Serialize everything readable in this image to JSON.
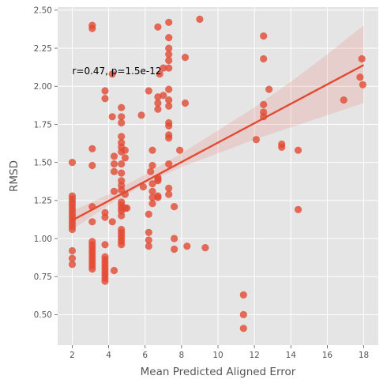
{
  "chart_data": {
    "type": "scatter",
    "title": "",
    "xlabel": "Mean Predicted Aligned Error",
    "ylabel": "RMSD",
    "xlim": [
      1.2,
      18.8
    ],
    "ylim": [
      0.3,
      2.52
    ],
    "xticks": [
      2,
      4,
      6,
      8,
      10,
      12,
      14,
      16,
      18
    ],
    "yticks": [
      0.5,
      0.75,
      1.0,
      1.25,
      1.5,
      1.75,
      2.0,
      2.25,
      2.5
    ],
    "grid": true,
    "style": "ggplot",
    "colors": {
      "background": "#E5E5E5",
      "grid": "#FFFFFF",
      "points": "#E24A33",
      "regression": "#E24A33",
      "confidence_band": "#E24A33"
    },
    "annotation": {
      "text": "r=0.47, p=1.5e-12",
      "x": 2.0,
      "y": 2.1
    },
    "regression": {
      "x": [
        2.0,
        18.0
      ],
      "y": [
        1.12,
        2.14
      ],
      "ci_lower": [
        [
          2.0,
          1.06
        ],
        [
          4.0,
          1.22
        ],
        [
          6.0,
          1.36
        ],
        [
          8.0,
          1.47
        ],
        [
          10.0,
          1.56
        ],
        [
          12.0,
          1.65
        ],
        [
          14.0,
          1.73
        ],
        [
          16.0,
          1.81
        ],
        [
          18.0,
          1.89
        ]
      ],
      "ci_upper": [
        [
          2.0,
          1.18
        ],
        [
          4.0,
          1.29
        ],
        [
          6.0,
          1.42
        ],
        [
          8.0,
          1.56
        ],
        [
          10.0,
          1.71
        ],
        [
          12.0,
          1.86
        ],
        [
          14.0,
          2.03
        ],
        [
          16.0,
          2.21
        ],
        [
          18.0,
          2.4
        ]
      ]
    },
    "points": [
      [
        2.0,
        1.28
      ],
      [
        2.0,
        1.26
      ],
      [
        2.0,
        1.24
      ],
      [
        2.0,
        1.22
      ],
      [
        2.0,
        1.2
      ],
      [
        2.0,
        1.18
      ],
      [
        2.0,
        1.16
      ],
      [
        2.0,
        1.14
      ],
      [
        2.0,
        1.12
      ],
      [
        2.0,
        1.1
      ],
      [
        2.0,
        1.08
      ],
      [
        2.0,
        1.06
      ],
      [
        2.0,
        1.5
      ],
      [
        2.0,
        0.92
      ],
      [
        2.0,
        0.87
      ],
      [
        2.0,
        0.83
      ],
      [
        3.1,
        2.4
      ],
      [
        3.1,
        2.38
      ],
      [
        3.1,
        1.59
      ],
      [
        3.1,
        1.48
      ],
      [
        3.1,
        1.21
      ],
      [
        3.1,
        1.11
      ],
      [
        3.1,
        0.98
      ],
      [
        3.1,
        0.96
      ],
      [
        3.1,
        0.94
      ],
      [
        3.1,
        0.92
      ],
      [
        3.1,
        0.9
      ],
      [
        3.1,
        0.88
      ],
      [
        3.1,
        0.86
      ],
      [
        3.1,
        0.84
      ],
      [
        3.1,
        0.82
      ],
      [
        3.1,
        0.8
      ],
      [
        3.8,
        1.97
      ],
      [
        3.8,
        1.92
      ],
      [
        3.8,
        1.17
      ],
      [
        3.8,
        1.14
      ],
      [
        3.8,
        0.96
      ],
      [
        3.8,
        0.88
      ],
      [
        3.8,
        0.86
      ],
      [
        3.8,
        0.84
      ],
      [
        3.8,
        0.82
      ],
      [
        3.8,
        0.8
      ],
      [
        3.8,
        0.78
      ],
      [
        3.8,
        0.76
      ],
      [
        3.8,
        0.74
      ],
      [
        3.8,
        0.72
      ],
      [
        4.2,
        2.08
      ],
      [
        4.2,
        1.8
      ],
      [
        4.3,
        1.54
      ],
      [
        4.3,
        1.49
      ],
      [
        4.3,
        1.44
      ],
      [
        4.3,
        1.31
      ],
      [
        4.2,
        1.11
      ],
      [
        4.3,
        0.79
      ],
      [
        4.7,
        1.86
      ],
      [
        4.7,
        1.8
      ],
      [
        4.7,
        1.76
      ],
      [
        4.7,
        1.67
      ],
      [
        4.7,
        1.63
      ],
      [
        4.7,
        1.6
      ],
      [
        4.7,
        1.57
      ],
      [
        4.7,
        1.49
      ],
      [
        4.7,
        1.43
      ],
      [
        4.7,
        1.38
      ],
      [
        4.7,
        1.35
      ],
      [
        4.7,
        1.32
      ],
      [
        4.7,
        1.24
      ],
      [
        4.7,
        1.22
      ],
      [
        4.7,
        1.2
      ],
      [
        4.7,
        1.18
      ],
      [
        4.7,
        1.15
      ],
      [
        4.7,
        1.06
      ],
      [
        4.7,
        1.04
      ],
      [
        4.7,
        1.02
      ],
      [
        4.7,
        1.0
      ],
      [
        4.7,
        0.98
      ],
      [
        4.7,
        0.96
      ],
      [
        4.9,
        1.58
      ],
      [
        4.9,
        1.53
      ],
      [
        4.9,
        1.29
      ],
      [
        4.9,
        1.2
      ],
      [
        5.0,
        1.2
      ],
      [
        5.8,
        1.81
      ],
      [
        5.9,
        1.34
      ],
      [
        6.2,
        1.97
      ],
      [
        6.3,
        1.44
      ],
      [
        6.2,
        1.16
      ],
      [
        6.2,
        1.04
      ],
      [
        6.2,
        0.99
      ],
      [
        6.2,
        0.95
      ],
      [
        6.4,
        1.58
      ],
      [
        6.4,
        1.48
      ],
      [
        6.4,
        1.36
      ],
      [
        6.4,
        1.31
      ],
      [
        6.4,
        1.27
      ],
      [
        6.4,
        1.23
      ],
      [
        6.7,
        2.39
      ],
      [
        6.7,
        1.93
      ],
      [
        6.7,
        1.89
      ],
      [
        6.7,
        1.85
      ],
      [
        6.7,
        1.4
      ],
      [
        6.7,
        1.39
      ],
      [
        6.7,
        1.38
      ],
      [
        6.7,
        1.28
      ],
      [
        6.7,
        1.27
      ],
      [
        6.8,
        2.08
      ],
      [
        7.0,
        2.12
      ],
      [
        7.0,
        1.94
      ],
      [
        7.3,
        2.42
      ],
      [
        7.3,
        2.32
      ],
      [
        7.3,
        2.25
      ],
      [
        7.3,
        2.21
      ],
      [
        7.3,
        2.17
      ],
      [
        7.3,
        2.12
      ],
      [
        7.3,
        1.98
      ],
      [
        7.3,
        1.91
      ],
      [
        7.3,
        1.87
      ],
      [
        7.3,
        1.76
      ],
      [
        7.3,
        1.74
      ],
      [
        7.3,
        1.68
      ],
      [
        7.3,
        1.66
      ],
      [
        7.3,
        1.49
      ],
      [
        7.3,
        1.33
      ],
      [
        7.3,
        1.29
      ],
      [
        7.6,
        1.21
      ],
      [
        7.6,
        1.0
      ],
      [
        7.6,
        0.93
      ],
      [
        7.9,
        1.58
      ],
      [
        8.2,
        2.19
      ],
      [
        8.2,
        1.89
      ],
      [
        8.3,
        0.95
      ],
      [
        9.0,
        2.44
      ],
      [
        9.3,
        0.94
      ],
      [
        11.4,
        0.63
      ],
      [
        11.4,
        0.5
      ],
      [
        11.4,
        0.41
      ],
      [
        12.1,
        1.65
      ],
      [
        12.5,
        2.33
      ],
      [
        12.5,
        2.18
      ],
      [
        12.5,
        1.88
      ],
      [
        12.5,
        1.83
      ],
      [
        12.5,
        1.8
      ],
      [
        12.8,
        1.98
      ],
      [
        13.5,
        1.62
      ],
      [
        13.5,
        1.6
      ],
      [
        14.4,
        1.58
      ],
      [
        14.4,
        1.19
      ],
      [
        16.9,
        1.91
      ],
      [
        17.8,
        2.06
      ],
      [
        17.9,
        2.18
      ],
      [
        17.95,
        2.01
      ]
    ]
  }
}
